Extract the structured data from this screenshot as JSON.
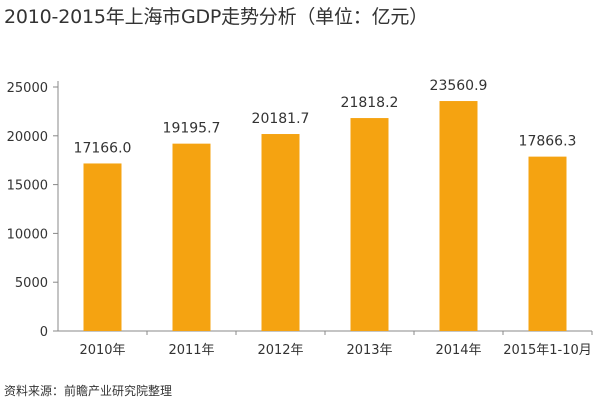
{
  "title": "2010-2015年上海市GDP走势分析（单位：亿元）",
  "source": "资料来源：前瞻产业研究院整理",
  "chart_data": {
    "type": "bar",
    "title": "2010-2015年上海市GDP走势分析（单位：亿元）",
    "categories": [
      "2010年",
      "2011年",
      "2012年",
      "2013年",
      "2014年",
      "2015年1-10月"
    ],
    "values": [
      17166.0,
      19195.7,
      20181.7,
      21818.2,
      23560.9,
      17866.3
    ],
    "value_labels": [
      "17166.0",
      "19195.7",
      "20181.7",
      "21818.2",
      "23560.9",
      "17866.3"
    ],
    "ylim": [
      0,
      25000
    ],
    "yticks": [
      0,
      5000,
      10000,
      15000,
      20000,
      25000
    ],
    "grid": false,
    "bar_color": "#F5A311",
    "axis_color": "#888888"
  }
}
